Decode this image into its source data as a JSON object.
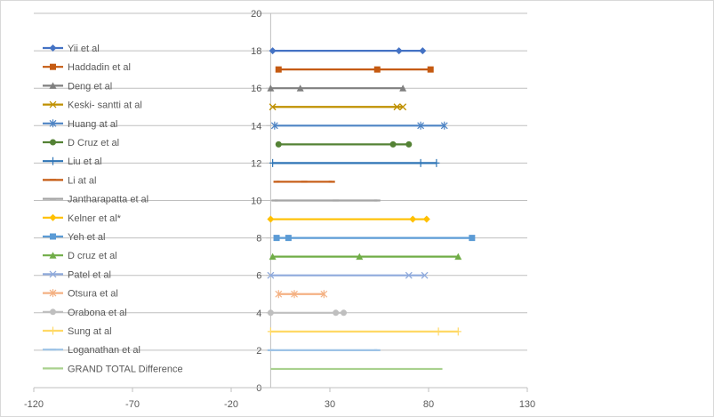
{
  "chart_data": {
    "type": "line",
    "title": "",
    "xlabel": "",
    "ylabel": "",
    "xlim": [
      -120,
      130
    ],
    "ylim": [
      0,
      20
    ],
    "x_ticks": [
      "-120",
      "-70",
      "-20",
      "30",
      "80",
      "130"
    ],
    "y_ticks": [
      "0",
      "2",
      "4",
      "6",
      "8",
      "10",
      "12",
      "14",
      "16",
      "18",
      "20"
    ],
    "grid": "horizontal",
    "legend": "left",
    "series": [
      {
        "name": "Yii et al",
        "color": "#4472C4",
        "marker": "diamond",
        "y": 18,
        "x": [
          1,
          65,
          77
        ]
      },
      {
        "name": "Haddadin et al",
        "color": "#C55A11",
        "marker": "square",
        "y": 17,
        "x": [
          4,
          54,
          81
        ]
      },
      {
        "name": "Deng et al",
        "color": "#7F7F7F",
        "marker": "triangle",
        "y": 16,
        "x": [
          0,
          15,
          67
        ]
      },
      {
        "name": "Keski- santti at al",
        "color": "#BF9000",
        "marker": "x",
        "y": 15,
        "x": [
          1,
          64,
          67
        ]
      },
      {
        "name": "Huang at al",
        "color": "#4E84C4",
        "marker": "star",
        "y": 14,
        "x": [
          2,
          76,
          88
        ]
      },
      {
        "name": "D Cruz et al",
        "color": "#548235",
        "marker": "circle",
        "y": 13,
        "x": [
          4,
          62,
          70
        ]
      },
      {
        "name": "Liu et al",
        "color": "#2E75B6",
        "marker": "plus",
        "y": 12,
        "x": [
          1,
          76,
          84
        ]
      },
      {
        "name": "Li at al",
        "color": "#C55A11",
        "marker": "dash",
        "y": 11,
        "x": [
          3,
          17,
          31
        ]
      },
      {
        "name": "Jantharapatta et al",
        "color": "#A5A5A5",
        "marker": "dash",
        "y": 10,
        "x": [
          2,
          33,
          54
        ]
      },
      {
        "name": "Kelner et al*",
        "color": "#FFC000",
        "marker": "diamond",
        "y": 9,
        "x": [
          0,
          72,
          79
        ]
      },
      {
        "name": "Yeh et al",
        "color": "#5B9BD5",
        "marker": "square",
        "y": 8,
        "x": [
          3,
          9,
          102
        ]
      },
      {
        "name": "D cruz et al",
        "color": "#70AD47",
        "marker": "triangle",
        "y": 7,
        "x": [
          1,
          45,
          95
        ]
      },
      {
        "name": "Patel et al",
        "color": "#8FAADC",
        "marker": "x",
        "y": 6,
        "x": [
          0,
          70,
          78
        ]
      },
      {
        "name": "Otsura et al",
        "color": "#F4B183",
        "marker": "star",
        "y": 5,
        "x": [
          4,
          12,
          27
        ]
      },
      {
        "name": "Orabona et al",
        "color": "#BFBFBF",
        "marker": "circle",
        "y": 4,
        "x": [
          0,
          33,
          37
        ]
      },
      {
        "name": "Sung at al",
        "color": "#FFD966",
        "marker": "plus",
        "y": 3,
        "x": [
          0,
          85,
          95
        ]
      },
      {
        "name": "Loganathan et al",
        "color": "#9DC3E6",
        "marker": "dash",
        "y": 2,
        "x": [
          0,
          54
        ]
      },
      {
        "name": "GRAND TOTAL Difference",
        "color": "#A9D18E",
        "marker": "none",
        "y": 1,
        "x": [
          0,
          87
        ]
      }
    ]
  }
}
